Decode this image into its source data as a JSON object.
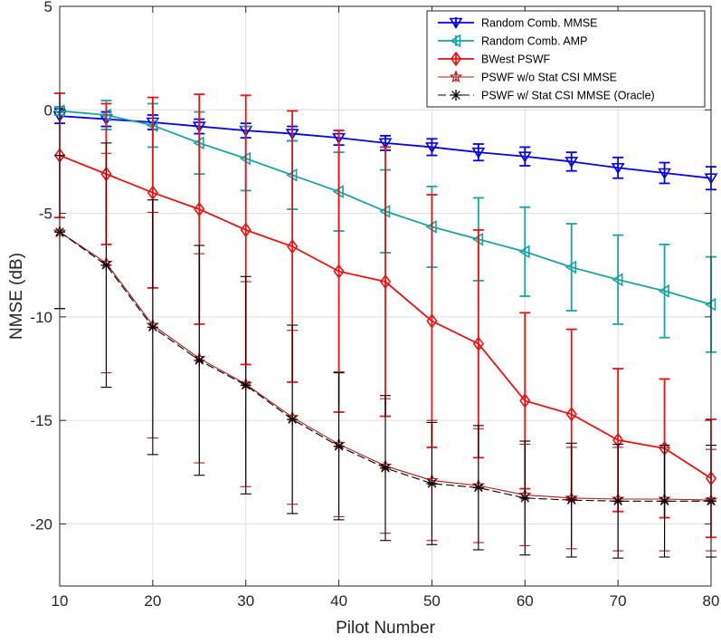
{
  "chart_data": {
    "type": "line",
    "title": "",
    "xlabel": "Pilot Number",
    "ylabel": "NMSE (dB)",
    "xlim": [
      10,
      80
    ],
    "ylim": [
      -23,
      5
    ],
    "grid": true,
    "legend_position": "top-right",
    "xticks": [
      10,
      20,
      30,
      40,
      50,
      60,
      70,
      80
    ],
    "yticks": [
      5,
      0,
      -5,
      -10,
      -15,
      -20
    ],
    "x": [
      10,
      15,
      20,
      25,
      30,
      35,
      40,
      45,
      50,
      55,
      60,
      65,
      70,
      75,
      80
    ],
    "series": [
      {
        "name": "Random Comb. MMSE",
        "color": "#0000ee",
        "marker": "triangle-down",
        "dash": "solid",
        "values": [
          -0.3,
          -0.45,
          -0.6,
          -0.8,
          -1.0,
          -1.15,
          -1.35,
          -1.6,
          -1.8,
          -2.05,
          -2.25,
          -2.5,
          -2.8,
          -3.05,
          -3.3
        ],
        "err": [
          0.35,
          0.35,
          0.35,
          0.35,
          0.35,
          0.35,
          0.35,
          0.35,
          0.4,
          0.4,
          0.45,
          0.45,
          0.5,
          0.5,
          0.55
        ]
      },
      {
        "name": "Random Comb. AMP",
        "color": "#1aa3a3",
        "marker": "triangle-left",
        "dash": "solid",
        "values": [
          -0.05,
          -0.25,
          -0.75,
          -1.6,
          -2.35,
          -3.15,
          -3.95,
          -4.9,
          -5.65,
          -6.25,
          -6.85,
          -7.6,
          -8.2,
          -8.75,
          -9.4
        ],
        "err": [
          0.2,
          0.7,
          1.05,
          1.5,
          1.55,
          1.65,
          1.9,
          2.0,
          1.95,
          2.0,
          2.15,
          2.1,
          2.15,
          2.25,
          2.3
        ]
      },
      {
        "name": "BWest PSWF",
        "color": "#ee1111",
        "marker": "diamond",
        "dash": "solid",
        "values": [
          -2.2,
          -3.1,
          -4.0,
          -4.8,
          -5.8,
          -6.6,
          -7.8,
          -8.3,
          -10.2,
          -11.3,
          -14.05,
          -14.7,
          -15.95,
          -16.35,
          -17.8
        ],
        "err": [
          3.0,
          3.4,
          4.6,
          5.55,
          6.5,
          6.55,
          6.8,
          6.5,
          6.1,
          5.5,
          4.25,
          4.1,
          3.45,
          3.35,
          2.85
        ]
      },
      {
        "name": "PSWF w/o Stat CSI MMSE",
        "color": "#b01a1a",
        "marker": "star",
        "dash": "solid",
        "values": [
          -5.9,
          -7.4,
          -10.4,
          -12.0,
          -13.25,
          -14.85,
          -16.15,
          -17.2,
          -17.9,
          -18.15,
          -18.6,
          -18.75,
          -18.8,
          -18.8,
          -18.85
        ],
        "err": [
          3.7,
          5.3,
          5.45,
          5.05,
          4.95,
          4.2,
          3.5,
          3.25,
          2.9,
          2.75,
          2.45,
          2.45,
          2.5,
          2.5,
          2.45
        ]
      },
      {
        "name": "PSWF w/ Stat CSI MMSE (Oracle)",
        "color": "#000000",
        "marker": "asterisk",
        "dash": "dashed",
        "values": [
          -5.9,
          -7.5,
          -10.5,
          -12.1,
          -13.3,
          -14.95,
          -16.25,
          -17.3,
          -18.05,
          -18.25,
          -18.75,
          -18.85,
          -18.9,
          -18.9,
          -18.9
        ],
        "err": [
          3.7,
          5.9,
          6.15,
          5.55,
          5.25,
          4.55,
          3.55,
          3.5,
          2.95,
          3.0,
          2.75,
          2.75,
          2.75,
          2.7,
          2.7
        ]
      }
    ]
  }
}
